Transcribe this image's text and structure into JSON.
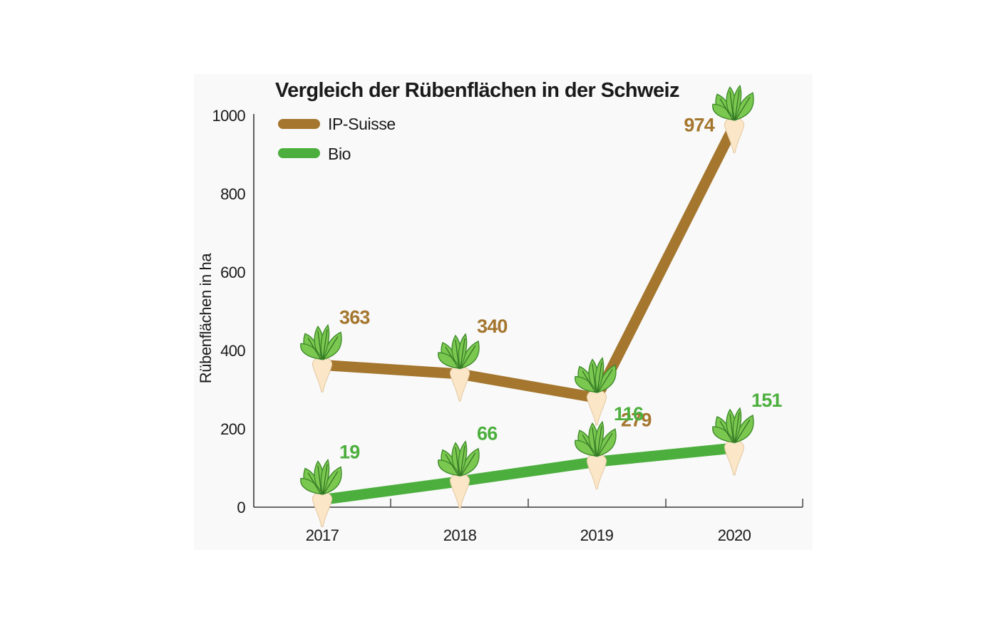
{
  "chart_data": {
    "type": "line",
    "title": "Vergleich der Rübenflächen in der Schweiz",
    "xlabel": "",
    "ylabel": "Rübenflächen in ha",
    "categories": [
      "2017",
      "2018",
      "2019",
      "2020"
    ],
    "ylim": [
      0,
      1000
    ],
    "yticks": [
      "0",
      "200",
      "400",
      "600",
      "800",
      "1000"
    ],
    "grid": false,
    "legend_position": "top-left",
    "series": [
      {
        "name": "IP-Suisse",
        "color": "#a4762e",
        "values": [
          363,
          340,
          279,
          974
        ],
        "labels": [
          "363",
          "340",
          "279",
          "974"
        ]
      },
      {
        "name": "Bio",
        "color": "#4caf3d",
        "values": [
          19,
          66,
          116,
          151
        ],
        "labels": [
          "19",
          "66",
          "116",
          "151"
        ]
      }
    ],
    "marker_icon": "sugar-beet-icon"
  }
}
